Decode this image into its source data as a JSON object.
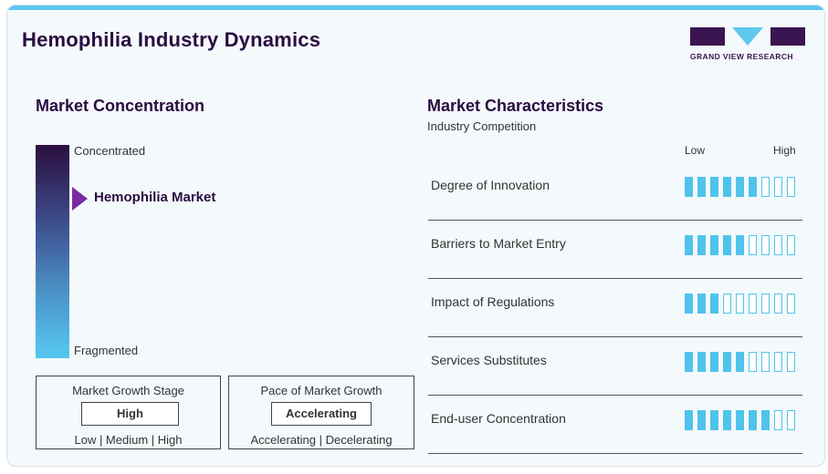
{
  "header": {
    "title": "Hemophilia Industry Dynamics",
    "logo_text": "GRAND VIEW RESEARCH"
  },
  "concentration": {
    "heading": "Market Concentration",
    "top_label": "Concentrated",
    "bottom_label": "Fragmented",
    "market_label": "Hemophilia Market",
    "colors": {
      "top": "#2b0f3f",
      "bottom": "#56c8f0",
      "marker": "#7a2aa3"
    }
  },
  "growth_stage": {
    "title": "Market Growth Stage",
    "value": "High",
    "scale": "Low | Medium | High"
  },
  "pace": {
    "title": "Pace of Market Growth",
    "value": "Accelerating",
    "scale": "Accelerating | Decelerating"
  },
  "characteristics": {
    "heading": "Market Characteristics",
    "subheading": "Industry Competition",
    "low_label": "Low",
    "high_label": "High",
    "total_segments": 9,
    "accent_color": "#4fc3ec",
    "rows": [
      {
        "label": "Degree of Innovation",
        "level": 6
      },
      {
        "label": "Barriers to Market Entry",
        "level": 5
      },
      {
        "label": "Impact of Regulations",
        "level": 3
      },
      {
        "label": "Services Substitutes",
        "level": 5
      },
      {
        "label": "End-user Concentration",
        "level": 7
      }
    ]
  }
}
